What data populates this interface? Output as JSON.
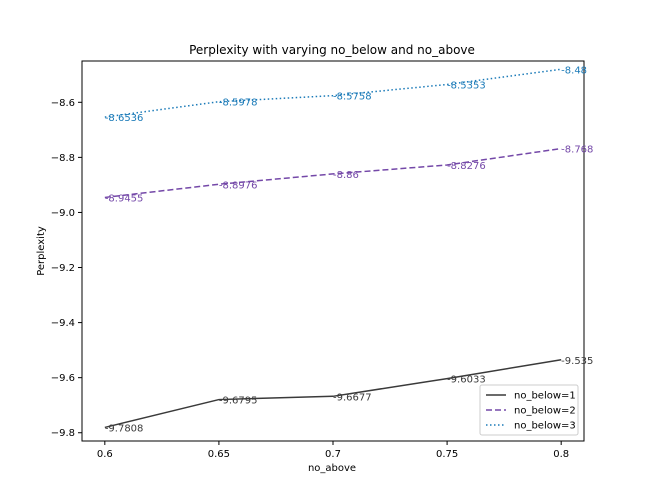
{
  "chart_data": {
    "type": "line",
    "title": "Perplexity with varying no_below and no_above",
    "xlabel": "no_above",
    "ylabel": "Perplexity",
    "x": [
      0.6,
      0.65,
      0.7,
      0.75,
      0.8
    ],
    "x_tick_labels": [
      "0.6",
      "0.65",
      "0.7",
      "0.75",
      "0.8"
    ],
    "xlim": [
      0.59,
      0.81
    ],
    "ylim": [
      -9.83,
      -8.45
    ],
    "y_ticks": [
      -9.8,
      -9.6,
      -9.4,
      -9.2,
      -9.0,
      -8.8,
      -8.6
    ],
    "y_tick_labels": [
      "−9.8",
      "−9.6",
      "−9.4",
      "−9.2",
      "−9.0",
      "−8.8",
      "−8.6"
    ],
    "grid": false,
    "legend_position": "lower-right",
    "series": [
      {
        "name": "no_below=1",
        "values": [
          -9.7808,
          -9.6795,
          -9.6677,
          -9.6033,
          -9.535
        ],
        "labels": [
          "-9.7808",
          "-9.6795",
          "-9.6677",
          "-9.6033",
          "-9.535"
        ],
        "color": "#3a3a3a",
        "linestyle": "solid"
      },
      {
        "name": "no_below=2",
        "values": [
          -8.9455,
          -8.8976,
          -8.86,
          -8.8276,
          -8.768
        ],
        "labels": [
          "-8.9455",
          "-8.8976",
          "-8.86",
          "-8.8276",
          "-8.768"
        ],
        "color": "#7448a8",
        "linestyle": "dashed"
      },
      {
        "name": "no_below=3",
        "values": [
          -8.6536,
          -8.5978,
          -8.5758,
          -8.5353,
          -8.48
        ],
        "labels": [
          "-8.6536",
          "-8.5978",
          "-8.5758",
          "-8.5353",
          "-8.48"
        ],
        "color": "#1a7ab8",
        "linestyle": "dotted"
      }
    ]
  }
}
